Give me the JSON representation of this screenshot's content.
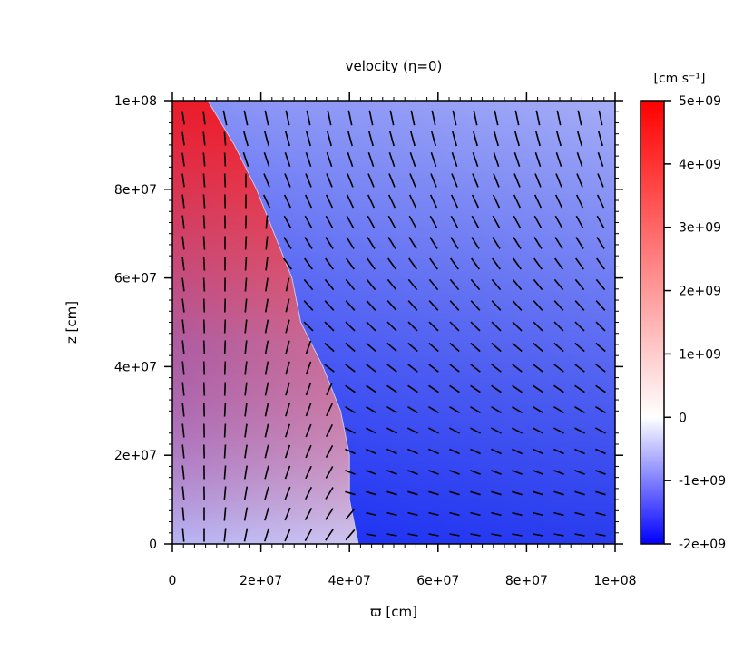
{
  "chart_data": {
    "type": "heatmap",
    "title": "velocity (η=0)",
    "xlabel": "ϖ [cm]",
    "ylabel": "z [cm]",
    "xlim": [
      0,
      100000000
    ],
    "ylim": [
      0,
      100000000
    ],
    "x_ticks": [
      {
        "value": 0,
        "label": "0"
      },
      {
        "value": 20000000,
        "label": "2e+07"
      },
      {
        "value": 40000000,
        "label": "4e+07"
      },
      {
        "value": 60000000,
        "label": "6e+07"
      },
      {
        "value": 80000000,
        "label": "8e+07"
      },
      {
        "value": 100000000,
        "label": "1e+08"
      }
    ],
    "y_ticks": [
      {
        "value": 0,
        "label": "0"
      },
      {
        "value": 20000000,
        "label": "2e+07"
      },
      {
        "value": 40000000,
        "label": "4e+07"
      },
      {
        "value": 60000000,
        "label": "6e+07"
      },
      {
        "value": 80000000,
        "label": "8e+07"
      },
      {
        "value": 100000000,
        "label": "1e+08"
      }
    ],
    "colorbar": {
      "label": "[cm s⁻¹]",
      "range": [
        -2000000000,
        5000000000
      ],
      "ticks": [
        {
          "value": 5000000000,
          "label": "5e+09"
        },
        {
          "value": 4000000000,
          "label": "4e+09"
        },
        {
          "value": 3000000000,
          "label": "3e+09"
        },
        {
          "value": 2000000000,
          "label": "2e+09"
        },
        {
          "value": 1000000000,
          "label": "1e+09"
        },
        {
          "value": 0,
          "label": "0"
        },
        {
          "value": -1000000000,
          "label": "-1e+09"
        },
        {
          "value": -2000000000,
          "label": "-2e+09"
        }
      ],
      "colors": {
        "max": "#ff0000",
        "zero": "#ffffff",
        "min": "#0000ff"
      }
    },
    "outflow_boundary_x_vs_z": [
      [
        0,
        42000000
      ],
      [
        5000000,
        41000000
      ],
      [
        10000000,
        40000000
      ],
      [
        20000000,
        40000000
      ],
      [
        30000000,
        38000000
      ],
      [
        40000000,
        34000000
      ],
      [
        50000000,
        29000000
      ],
      [
        60000000,
        27000000
      ],
      [
        70000000,
        23000000
      ],
      [
        80000000,
        19000000
      ],
      [
        90000000,
        14000000
      ],
      [
        100000000,
        8000000
      ]
    ],
    "grid": false,
    "arrows": true
  }
}
